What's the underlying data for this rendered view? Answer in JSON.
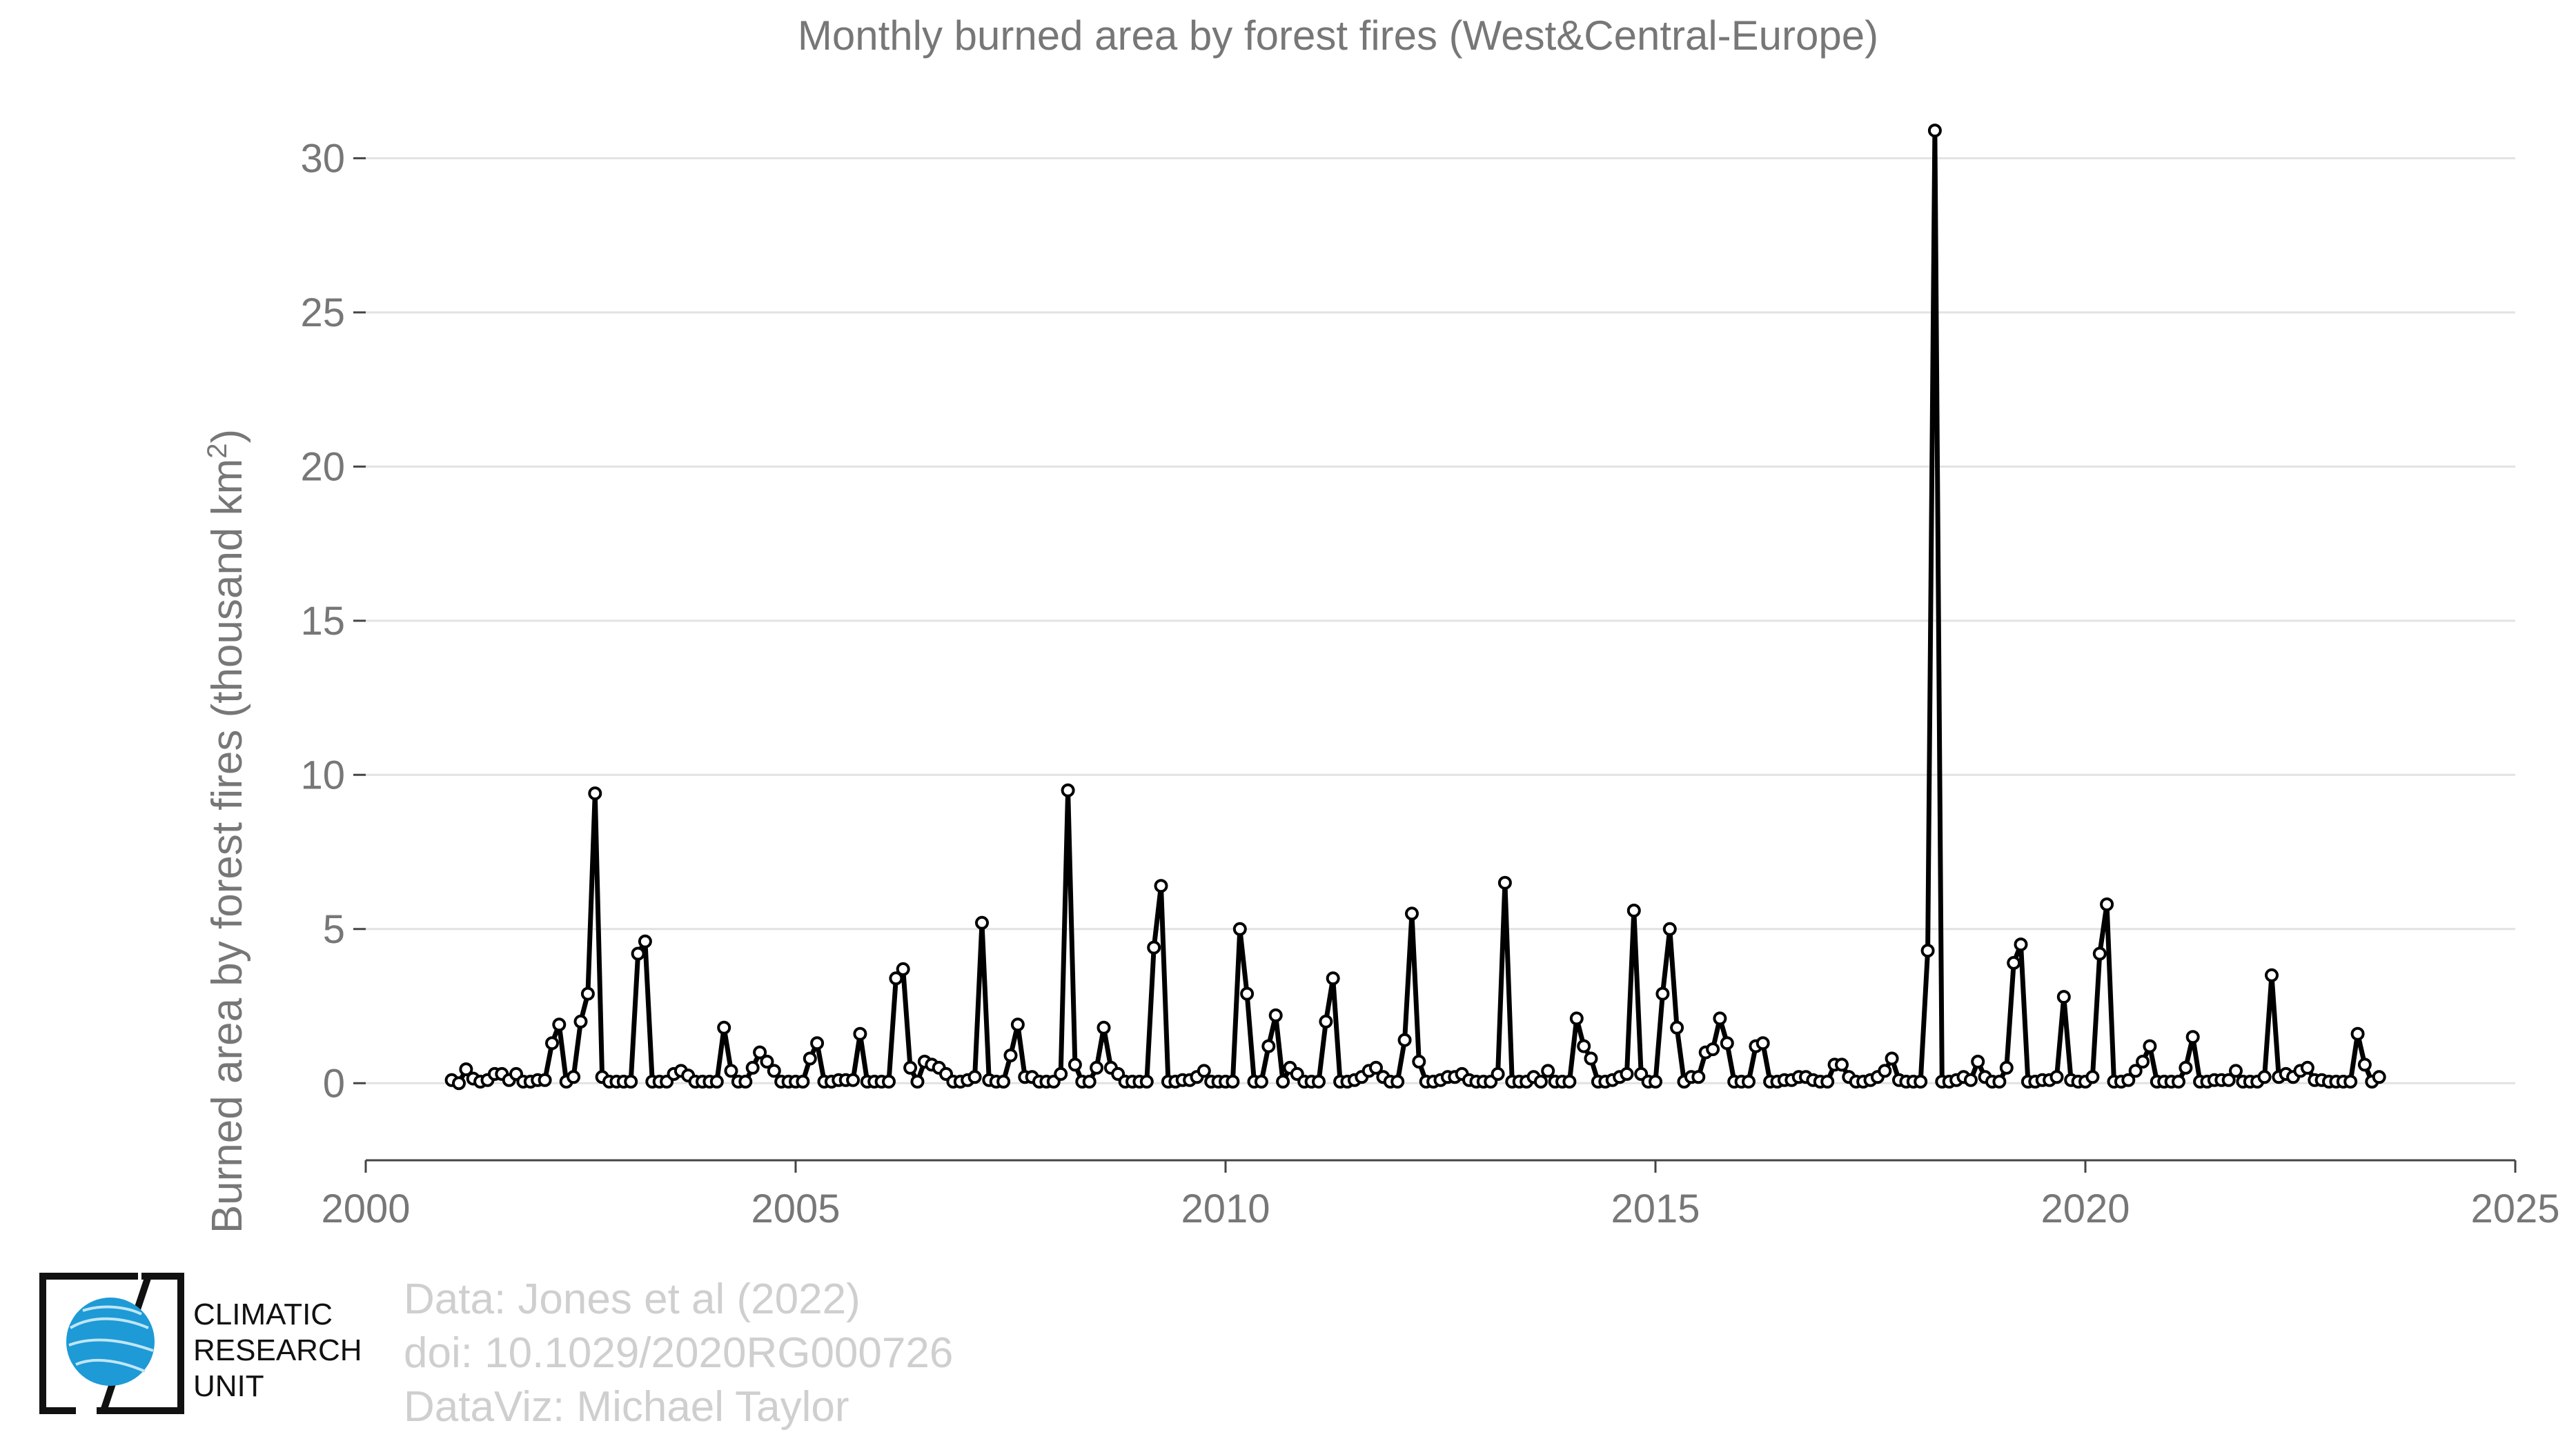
{
  "chart_data": {
    "type": "line",
    "title": "Monthly burned area by forest fires (West&Central-Europe)",
    "ylabel_main": "Burned area by forest fires (thousand km",
    "ylabel_sup": "2",
    "ylabel_tail": ")",
    "xlim": [
      2000,
      2025
    ],
    "ylim": [
      -2.5,
      32
    ],
    "xticks": [
      2000,
      2005,
      2010,
      2015,
      2020,
      2025
    ],
    "yticks": [
      0,
      5,
      10,
      15,
      20,
      25,
      30
    ],
    "grid": true,
    "series": [
      {
        "start": 2001.0,
        "step": 0.0833333,
        "color": "#000000",
        "values": [
          0.1,
          0.0,
          0.45,
          0.15,
          0.05,
          0.1,
          0.3,
          0.3,
          0.1,
          0.3,
          0.05,
          0.05,
          0.1,
          0.1,
          1.3,
          1.9,
          0.05,
          0.2,
          2.0,
          2.9,
          9.4,
          0.2,
          0.05,
          0.05,
          0.05,
          0.05,
          4.2,
          4.6,
          0.05,
          0.05,
          0.05,
          0.3,
          0.4,
          0.25,
          0.05,
          0.05,
          0.05,
          0.05,
          1.8,
          0.4,
          0.05,
          0.05,
          0.5,
          1.0,
          0.7,
          0.4,
          0.05,
          0.05,
          0.05,
          0.05,
          0.8,
          1.3,
          0.05,
          0.05,
          0.1,
          0.1,
          0.1,
          1.6,
          0.05,
          0.05,
          0.05,
          0.05,
          3.4,
          3.7,
          0.5,
          0.05,
          0.7,
          0.6,
          0.5,
          0.3,
          0.05,
          0.05,
          0.1,
          0.2,
          5.2,
          0.1,
          0.05,
          0.05,
          0.9,
          1.9,
          0.2,
          0.2,
          0.05,
          0.05,
          0.05,
          0.3,
          9.5,
          0.6,
          0.05,
          0.05,
          0.5,
          1.8,
          0.5,
          0.3,
          0.05,
          0.05,
          0.05,
          0.05,
          4.4,
          6.4,
          0.05,
          0.05,
          0.1,
          0.1,
          0.2,
          0.4,
          0.05,
          0.05,
          0.05,
          0.05,
          5.0,
          2.9,
          0.05,
          0.05,
          1.2,
          2.2,
          0.05,
          0.5,
          0.3,
          0.05,
          0.05,
          0.05,
          2.0,
          3.4,
          0.05,
          0.05,
          0.1,
          0.2,
          0.4,
          0.5,
          0.2,
          0.05,
          0.05,
          1.4,
          5.5,
          0.7,
          0.05,
          0.05,
          0.1,
          0.2,
          0.2,
          0.3,
          0.1,
          0.05,
          0.05,
          0.05,
          0.3,
          6.5,
          0.05,
          0.05,
          0.05,
          0.2,
          0.05,
          0.4,
          0.05,
          0.05,
          0.05,
          2.1,
          1.2,
          0.8,
          0.05,
          0.05,
          0.1,
          0.2,
          0.3,
          5.6,
          0.3,
          0.05,
          0.05,
          2.9,
          5.0,
          1.8,
          0.05,
          0.2,
          0.2,
          1.0,
          1.1,
          2.1,
          1.3,
          0.05,
          0.05,
          0.05,
          1.2,
          1.3,
          0.05,
          0.05,
          0.1,
          0.1,
          0.2,
          0.2,
          0.1,
          0.05,
          0.05,
          0.6,
          0.6,
          0.2,
          0.05,
          0.05,
          0.1,
          0.2,
          0.4,
          0.8,
          0.1,
          0.05,
          0.05,
          0.05,
          4.3,
          30.9,
          0.05,
          0.05,
          0.1,
          0.2,
          0.1,
          0.7,
          0.2,
          0.05,
          0.05,
          0.5,
          3.9,
          4.5,
          0.05,
          0.05,
          0.1,
          0.1,
          0.2,
          2.8,
          0.1,
          0.05,
          0.05,
          0.2,
          4.2,
          5.8,
          0.05,
          0.05,
          0.1,
          0.4,
          0.7,
          1.2,
          0.05,
          0.05,
          0.05,
          0.05,
          0.5,
          1.5,
          0.05,
          0.05,
          0.1,
          0.1,
          0.1,
          0.4,
          0.05,
          0.05,
          0.05,
          0.2,
          3.5,
          0.2,
          0.3,
          0.2,
          0.4,
          0.5,
          0.1,
          0.1,
          0.05,
          0.05,
          0.05,
          0.05,
          1.6,
          0.6,
          0.05,
          0.2
        ]
      }
    ]
  },
  "logo": {
    "line1": "CLIMATIC",
    "line2": "RESEARCH",
    "line3": "UNIT"
  },
  "credits": {
    "line1": "Data: Jones et al (2022)",
    "line2": "doi: 10.1029/2020RG000726",
    "line3": "DataViz: Michael Taylor"
  }
}
